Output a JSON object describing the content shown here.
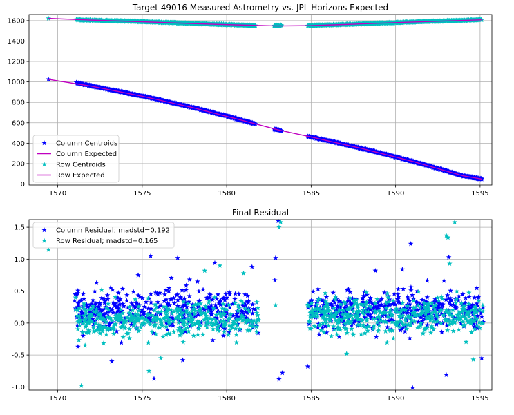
{
  "chart_data": [
    {
      "type": "scatter",
      "title": "Target 49016 Measured Astrometry vs. JPL Horizons Expected",
      "xlabel": "",
      "ylabel": "",
      "xlim": [
        1568.3,
        1595.7
      ],
      "ylim": [
        -10,
        1660
      ],
      "x_ticks": [
        1570,
        1575,
        1580,
        1585,
        1590,
        1595
      ],
      "y_ticks": [
        0,
        200,
        400,
        600,
        800,
        1000,
        1200,
        1400,
        1600
      ],
      "grid": true,
      "legend": "lower-left",
      "series": [
        {
          "name": "Column Centroids",
          "kind": "marker",
          "color": "#0000ff",
          "segments": [
            {
              "x": [
                1569.45
              ],
              "y": [
                1025
              ]
            },
            {
              "x": [
                1571.1,
                1571.5,
                1572,
                1573,
                1574,
                1575,
                1576,
                1577,
                1578,
                1579,
                1580,
                1581,
                1581.7
              ],
              "y": [
                990,
                978,
                960,
                928,
                895,
                860,
                825,
                787,
                748,
                708,
                666,
                620,
                588
              ]
            },
            {
              "x": [
                1582.8,
                1583.25
              ],
              "y": [
                538,
                522
              ]
            },
            {
              "x": [
                1584.8,
                1585,
                1586,
                1587,
                1588,
                1589,
                1590,
                1591,
                1592,
                1593,
                1594,
                1595.1
              ],
              "y": [
                466,
                460,
                424,
                387,
                348,
                308,
                266,
                222,
                176,
                128,
                80,
                48
              ]
            }
          ]
        },
        {
          "name": "Column Expected",
          "kind": "line",
          "color": "#c000c0",
          "x": [
            1569.45,
            1572,
            1575,
            1578,
            1581,
            1583,
            1585,
            1588,
            1591,
            1594,
            1595.1
          ],
          "y": [
            1025,
            958,
            860,
            748,
            620,
            532,
            460,
            348,
            222,
            80,
            48
          ]
        },
        {
          "name": "Row Centroids",
          "kind": "marker",
          "color": "#00bfbf",
          "segments": [
            {
              "x": [
                1569.45
              ],
              "y": [
                1622
              ]
            },
            {
              "x": [
                1571.1,
                1573,
                1575,
                1577,
                1579,
                1581,
                1581.7
              ],
              "y": [
                1608,
                1598,
                1589,
                1577,
                1566,
                1555,
                1550
              ]
            },
            {
              "x": [
                1582.8,
                1583.25
              ],
              "y": [
                1550,
                1552
              ]
            },
            {
              "x": [
                1584.8,
                1587,
                1589,
                1591,
                1593,
                1595.1
              ],
              "y": [
                1550,
                1562,
                1574,
                1586,
                1597,
                1608
              ]
            }
          ]
        },
        {
          "name": "Row Expected",
          "kind": "line",
          "color": "#c000c0",
          "x": [
            1569.45,
            1572,
            1575,
            1578,
            1581,
            1583,
            1585,
            1588,
            1591,
            1594,
            1595.1
          ],
          "y": [
            1622,
            1605,
            1589,
            1571,
            1556,
            1548,
            1551,
            1568,
            1586,
            1602,
            1608
          ]
        }
      ]
    },
    {
      "type": "scatter",
      "title": "Final Residual",
      "xlabel": "",
      "ylabel": "",
      "xlim": [
        1568.3,
        1595.7
      ],
      "ylim": [
        -1.05,
        1.62
      ],
      "x_ticks": [
        1570,
        1575,
        1580,
        1585,
        1590,
        1595
      ],
      "y_ticks": [
        -1.0,
        -0.5,
        0.0,
        0.5,
        1.0,
        1.5
      ],
      "grid": true,
      "legend": "upper-left",
      "series": [
        {
          "name": "Column Residual; madstd=0.192",
          "color": "#0000ff",
          "x": [
            1571.2,
            1571.5,
            1572.3,
            1573.2,
            1575.5,
            1575.7,
            1577.1,
            1577.4,
            1579.3,
            1581.5,
            1582.85,
            1582.9,
            1583.05,
            1583.1,
            1583.3,
            1584.8,
            1588.8,
            1590.4,
            1590.9,
            1591.0,
            1593.0,
            1593.15,
            1595.1
          ],
          "y": [
            -0.37,
            -0.2,
            0.63,
            -0.6,
            1.05,
            -0.87,
            1.02,
            -0.58,
            0.94,
            0.88,
            0.67,
            1.02,
            1.6,
            -0.88,
            -0.78,
            -0.68,
            0.82,
            0.84,
            1.24,
            -1.01,
            -0.81,
            1.03,
            -0.55
          ],
          "cloud": [
            {
              "x_range": [
                1571.0,
                1581.9
              ],
              "mean": 0.2,
              "spread": 0.17,
              "n": 420
            },
            {
              "x_range": [
                1584.8,
                1595.2
              ],
              "mean": 0.2,
              "spread": 0.15,
              "n": 420
            }
          ]
        },
        {
          "name": "Row Residual; madstd=0.165",
          "color": "#00bfbf",
          "x": [
            1569.45,
            1571.4,
            1572.6,
            1575.4,
            1576.1,
            1578.7,
            1579.6,
            1581.0,
            1582.9,
            1583.1,
            1583.2,
            1587.1,
            1593.0,
            1593.1,
            1593.2,
            1593.5,
            1594.6
          ],
          "y": [
            1.15,
            -0.98,
            0.52,
            -0.75,
            -0.55,
            0.82,
            0.9,
            0.78,
            0.28,
            1.5,
            1.58,
            -0.48,
            1.37,
            1.34,
            0.93,
            1.58,
            -0.57
          ],
          "cloud": [
            {
              "x_range": [
                1571.0,
                1581.9
              ],
              "mean": 0.05,
              "spread": 0.15,
              "n": 420
            },
            {
              "x_range": [
                1584.8,
                1595.2
              ],
              "mean": 0.12,
              "spread": 0.14,
              "n": 420
            }
          ]
        }
      ]
    }
  ]
}
